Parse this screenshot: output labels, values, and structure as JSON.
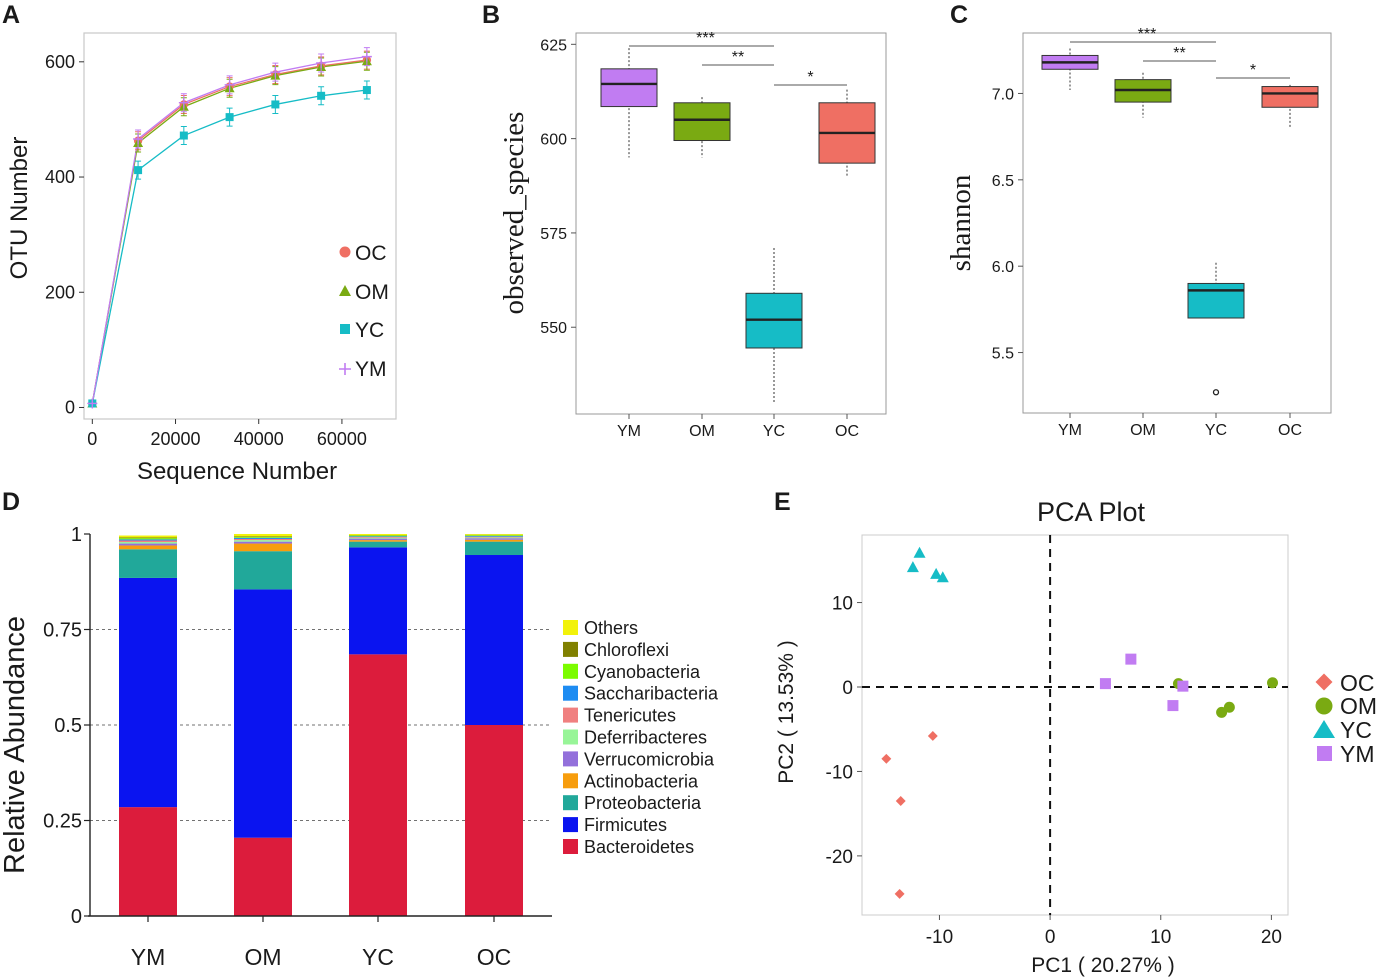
{
  "colors": {
    "OC": "#ef6f63",
    "OM": "#7aaa12",
    "YC": "#16bcc6",
    "YM": "#c17cf2"
  },
  "chart_data": [
    {
      "panel": "A",
      "type": "line",
      "xlabel": "Sequence Number",
      "ylabel": "OTU Number",
      "xlim": [
        -2000,
        73000
      ],
      "ylim": [
        -20,
        650
      ],
      "xticks": [
        0,
        20000,
        40000,
        60000
      ],
      "yticks": [
        0,
        200,
        400,
        600
      ],
      "x": [
        0,
        11000,
        22000,
        33000,
        44000,
        55000,
        66000
      ],
      "series": [
        {
          "name": "OC",
          "marker": "circle",
          "values": [
            7,
            463,
            526,
            557,
            578,
            593,
            603
          ]
        },
        {
          "name": "OM",
          "marker": "triangle",
          "values": [
            7,
            459,
            522,
            554,
            576,
            591,
            601
          ]
        },
        {
          "name": "YC",
          "marker": "square",
          "values": [
            7,
            412,
            472,
            504,
            526,
            541,
            551
          ]
        },
        {
          "name": "YM",
          "marker": "plus",
          "values": [
            7,
            466,
            529,
            560,
            582,
            598,
            609
          ]
        }
      ],
      "legend": [
        "OC",
        "OM",
        "YC",
        "YM"
      ]
    },
    {
      "panel": "B",
      "type": "boxplot",
      "ylabel": "observed_species",
      "categories": [
        "YM",
        "OM",
        "YC",
        "OC"
      ],
      "ylim": [
        527,
        628
      ],
      "yticks": [
        550,
        575,
        600,
        625
      ],
      "boxes": [
        {
          "name": "YM",
          "min": 595,
          "q1": 608.5,
          "median": 614.5,
          "q3": 618.5,
          "max": 624
        },
        {
          "name": "OM",
          "min": 595,
          "q1": 599.5,
          "median": 605,
          "q3": 609.5,
          "max": 611
        },
        {
          "name": "YC",
          "min": 530,
          "q1": 544.5,
          "median": 552,
          "q3": 559,
          "max": 571
        },
        {
          "name": "OC",
          "min": 590,
          "q1": 593.5,
          "median": 601.5,
          "q3": 609.5,
          "max": 613
        }
      ],
      "significance": [
        {
          "from": "YM",
          "to": "YC",
          "label": "***"
        },
        {
          "from": "OM",
          "to": "YC",
          "label": "**"
        },
        {
          "from": "YC",
          "to": "OC",
          "label": "*"
        }
      ]
    },
    {
      "panel": "C",
      "type": "boxplot",
      "ylabel": "shannon",
      "categories": [
        "YM",
        "OM",
        "YC",
        "OC"
      ],
      "ylim": [
        5.15,
        7.35
      ],
      "yticks": [
        5.5,
        6.0,
        6.5,
        7.0
      ],
      "boxes": [
        {
          "name": "YM",
          "min": 7.02,
          "q1": 7.14,
          "median": 7.18,
          "q3": 7.22,
          "max": 7.26
        },
        {
          "name": "OM",
          "min": 6.86,
          "q1": 6.95,
          "median": 7.02,
          "q3": 7.08,
          "max": 7.12
        },
        {
          "name": "YC",
          "min": 5.7,
          "q1": 5.7,
          "median": 5.86,
          "q3": 5.9,
          "max": 6.02,
          "outliers": [
            5.27
          ]
        },
        {
          "name": "OC",
          "min": 6.8,
          "q1": 6.92,
          "median": 7.0,
          "q3": 7.04,
          "max": 7.05
        }
      ],
      "significance": [
        {
          "from": "YM",
          "to": "YC",
          "label": "***"
        },
        {
          "from": "OM",
          "to": "YC",
          "label": "**"
        },
        {
          "from": "YC",
          "to": "OC",
          "label": "*"
        }
      ]
    },
    {
      "panel": "D",
      "type": "stacked_bar",
      "ylabel": "Relative Abundance",
      "categories": [
        "YM",
        "OM",
        "YC",
        "OC"
      ],
      "ylim": [
        0,
        1
      ],
      "yticks": [
        "0",
        "0.25",
        "0.5",
        "0.75",
        "1"
      ],
      "series": [
        {
          "name": "Bacteroidetes",
          "color": "#dc1c3c",
          "values": [
            0.285,
            0.205,
            0.685,
            0.5
          ]
        },
        {
          "name": "Firmicutes",
          "color": "#0a14f0",
          "values": [
            0.6,
            0.65,
            0.28,
            0.445
          ]
        },
        {
          "name": "Proteobacteria",
          "color": "#21a89a",
          "values": [
            0.075,
            0.1,
            0.015,
            0.035
          ]
        },
        {
          "name": "Actinobacteria",
          "color": "#f79d0d",
          "values": [
            0.01,
            0.02,
            0.004,
            0.005
          ]
        },
        {
          "name": "Verrucomicrobia",
          "color": "#9370db",
          "values": [
            0.005,
            0.005,
            0.004,
            0.004
          ]
        },
        {
          "name": "Deferribacteres",
          "color": "#98f598",
          "values": [
            0.004,
            0.004,
            0.002,
            0.002
          ]
        },
        {
          "name": "Tenericutes",
          "color": "#f08080",
          "values": [
            0.004,
            0.003,
            0.002,
            0.002
          ]
        },
        {
          "name": "Saccharibacteria",
          "color": "#1e8cf2",
          "values": [
            0.003,
            0.003,
            0.002,
            0.002
          ]
        },
        {
          "name": "Cyanobacteria",
          "color": "#7cfc00",
          "values": [
            0.003,
            0.002,
            0.002,
            0.002
          ]
        },
        {
          "name": "Chloroflexi",
          "color": "#808000",
          "values": [
            0.002,
            0.002,
            0.001,
            0.001
          ]
        },
        {
          "name": "Others",
          "color": "#f2f20a",
          "values": [
            0.005,
            0.006,
            0.003,
            0.002
          ]
        }
      ],
      "legend_order": [
        "Others",
        "Chloroflexi",
        "Cyanobacteria",
        "Saccharibacteria",
        "Tenericutes",
        "Deferribacteres",
        "Verrucomicrobia",
        "Actinobacteria",
        "Proteobacteria",
        "Firmicutes",
        "Bacteroidetes"
      ]
    },
    {
      "panel": "E",
      "type": "scatter",
      "title": "PCA Plot",
      "xlabel": "PC1 ( 20.27% )",
      "ylabel": "PC2 ( 13.53% )",
      "xlim": [
        -17,
        21.5
      ],
      "ylim": [
        -27,
        18
      ],
      "xticks": [
        -10,
        0,
        10,
        20
      ],
      "yticks": [
        10,
        0,
        -10,
        -20
      ],
      "series": [
        {
          "name": "OC",
          "marker": "diamond",
          "points": [
            [
              -10.6,
              -5.8
            ],
            [
              -14.8,
              -8.5
            ],
            [
              -13.5,
              -13.5
            ],
            [
              -13.6,
              -24.5
            ]
          ]
        },
        {
          "name": "OM",
          "marker": "circle",
          "points": [
            [
              11.6,
              0.4
            ],
            [
              15.5,
              -3.0
            ],
            [
              16.2,
              -2.4
            ],
            [
              20.1,
              0.5
            ]
          ]
        },
        {
          "name": "YC",
          "marker": "triangle",
          "points": [
            [
              -11.8,
              15.9
            ],
            [
              -12.4,
              14.2
            ],
            [
              -10.3,
              13.4
            ],
            [
              -9.7,
              13.0
            ]
          ]
        },
        {
          "name": "YM",
          "marker": "square",
          "points": [
            [
              5.0,
              0.4
            ],
            [
              7.3,
              3.3
            ],
            [
              11.1,
              -2.2
            ],
            [
              12.0,
              0.1
            ]
          ]
        }
      ],
      "legend": [
        "OC",
        "OM",
        "YC",
        "YM"
      ]
    }
  ]
}
